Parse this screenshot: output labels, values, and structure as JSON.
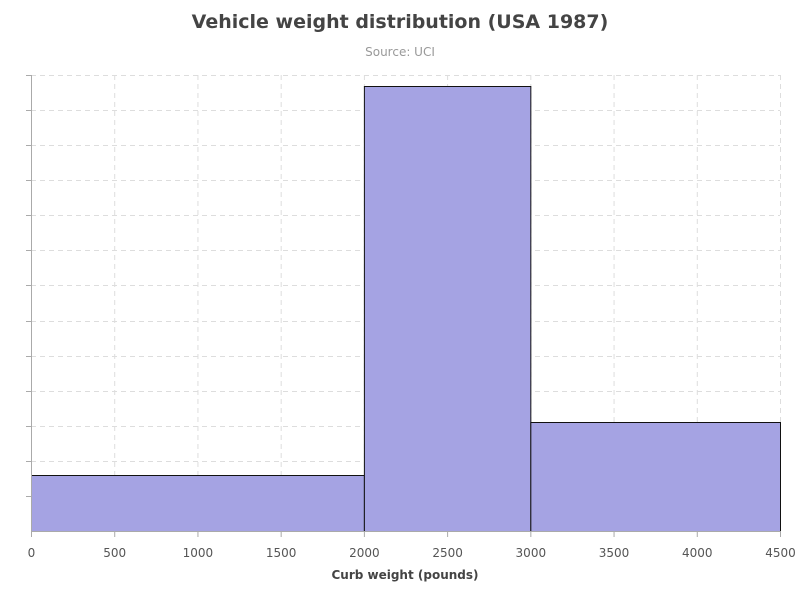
{
  "chart_data": {
    "type": "bar",
    "subtype": "histogram",
    "title": "Vehicle weight distribution (USA 1987)",
    "subtitle": "Source: UCI",
    "xlabel": "Curb weight (pounds)",
    "ylabel": "",
    "xlim": [
      0,
      4500
    ],
    "ylim": [
      0,
      130
    ],
    "x_ticks": [
      0,
      500,
      1000,
      1500,
      2000,
      2500,
      3000,
      3500,
      4000,
      4500
    ],
    "y_ticks_labeled": false,
    "bins": [
      {
        "start": 0,
        "end": 2000,
        "value": 16
      },
      {
        "start": 2000,
        "end": 3000,
        "value": 127
      },
      {
        "start": 3000,
        "end": 4500,
        "value": 31
      }
    ],
    "bar_color": "#a5a3e3",
    "grid": true,
    "grid_style": "dashed"
  }
}
